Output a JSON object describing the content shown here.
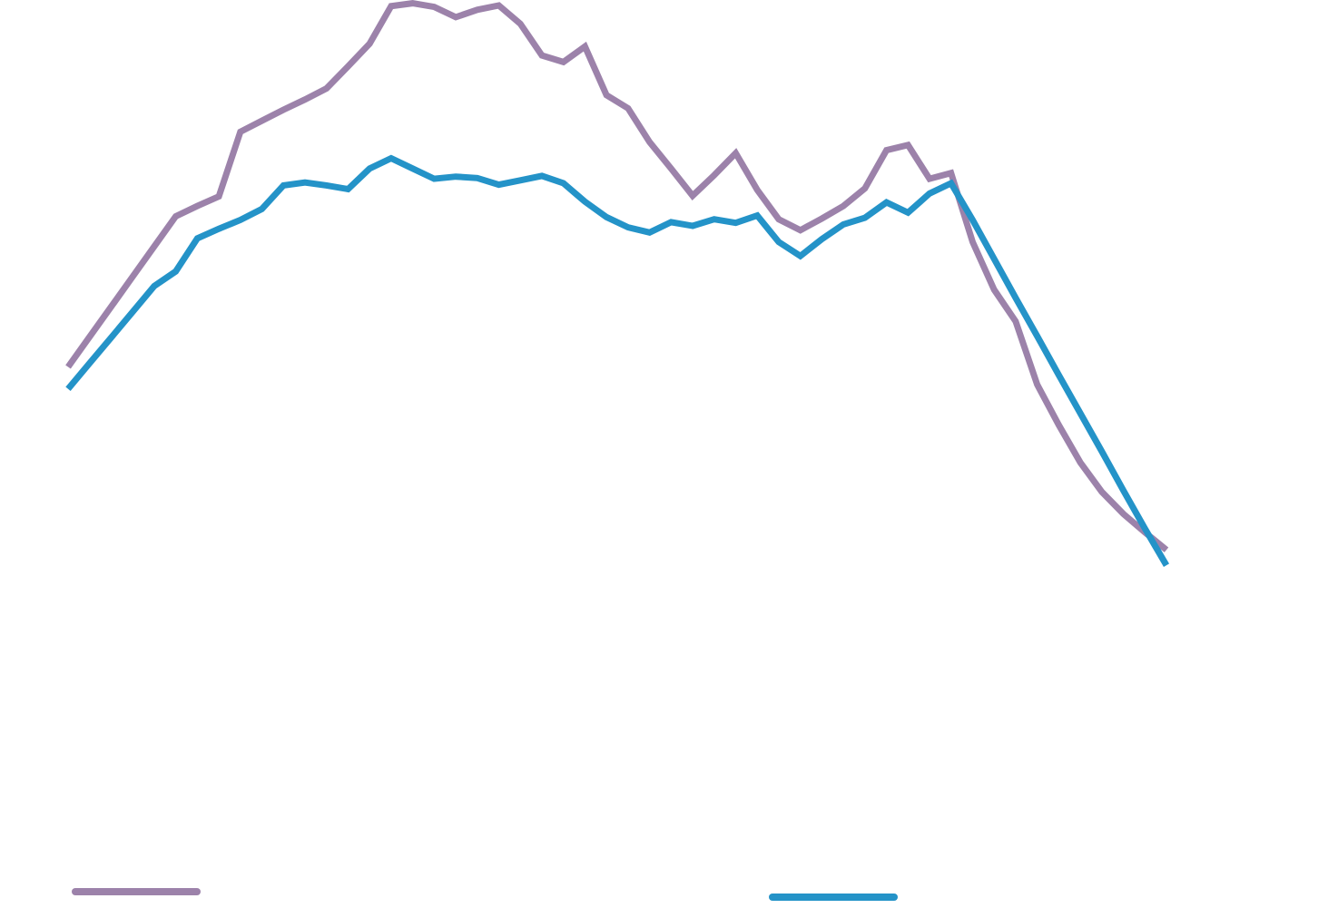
{
  "chart_data": {
    "type": "line",
    "title": "",
    "xlabel": "",
    "ylabel": "",
    "grid": false,
    "axes_visible": false,
    "legend_placement": "bottom",
    "xlim": [
      0,
      51
    ],
    "ylim": [
      0,
      100
    ],
    "x": [
      0,
      1,
      2,
      3,
      4,
      5,
      6,
      7,
      8,
      9,
      10,
      11,
      12,
      13,
      14,
      15,
      16,
      17,
      18,
      19,
      20,
      21,
      22,
      23,
      24,
      25,
      26,
      27,
      28,
      29,
      30,
      31,
      32,
      33,
      34,
      35,
      36,
      37,
      38,
      39,
      40,
      41,
      42,
      43,
      44,
      45,
      46,
      47,
      48,
      49,
      50,
      51
    ],
    "series": [
      {
        "color": "#9c82aa",
        "values": [
          55,
          59.1,
          63.2,
          67.3,
          71.4,
          75.5,
          76.9,
          78.2,
          87,
          88.5,
          90,
          91.4,
          92.9,
          95.9,
          99,
          104.1,
          104.5,
          104,
          102.6,
          103.6,
          104.2,
          101.7,
          97.4,
          96.5,
          98.6,
          92,
          90.2,
          85.6,
          82,
          78.3,
          81.1,
          84.1,
          79.1,
          75.1,
          73.6,
          75.2,
          76.9,
          79.3,
          84.5,
          85.2,
          80.6,
          81.4,
          72,
          65.5,
          61.2,
          52.6,
          47.1,
          42,
          38,
          35,
          32.5,
          30.1
        ]
      },
      {
        "color": "#2493c8",
        "values": [
          52,
          55.5,
          59,
          62.5,
          66,
          68,
          72.5,
          73.8,
          75,
          76.5,
          79.7,
          80.1,
          79.7,
          79.2,
          82,
          83.4,
          82,
          80.6,
          80.9,
          80.7,
          79.8,
          80.4,
          81,
          80,
          77.5,
          75.4,
          74,
          73.3,
          74.7,
          74.2,
          75.1,
          74.6,
          75.6,
          72,
          70.1,
          72.4,
          74.4,
          75.3,
          77.4,
          76,
          78.6,
          80,
          75,
          69.7,
          64.4,
          59.2,
          53.9,
          48.7,
          43.5,
          38.2,
          33,
          28
        ]
      }
    ]
  }
}
